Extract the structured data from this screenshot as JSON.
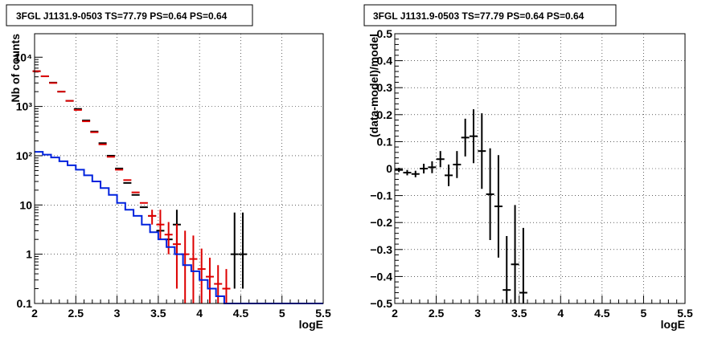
{
  "chart_data": [
    {
      "type": "line",
      "title": "3FGL J1131.9-0503 TS=77.79 PS=0.64 PS=0.64",
      "xlabel": "logE",
      "ylabel": "Nb of counts",
      "xscale": "linear",
      "yscale": "log",
      "xlim": [
        2,
        5.5
      ],
      "ylim": [
        0.1,
        30000
      ],
      "grid": true,
      "x_ticks": [
        "2",
        "2.5",
        "3",
        "3.5",
        "4",
        "4.5",
        "5",
        "5.5"
      ],
      "y_ticks": [
        "0.1",
        "1",
        "10",
        "10²",
        "10³",
        "10⁴"
      ],
      "series": [
        {
          "kind": "points",
          "color": "#000000",
          "x": [
            2.025,
            2.125,
            2.225,
            2.325,
            2.425,
            2.525,
            2.625,
            2.725,
            2.825,
            2.925,
            3.025,
            3.125,
            3.225,
            3.325,
            3.425,
            3.525,
            3.625,
            3.725,
            4.425,
            4.525
          ],
          "y": [
            5200,
            4100,
            3050,
            2000,
            1300,
            890,
            520,
            310,
            180,
            100,
            55,
            28,
            16,
            9,
            6,
            3,
            2,
            4,
            1,
            1
          ],
          "err_lo": [
            0,
            0,
            0,
            0,
            0,
            0,
            0,
            0,
            0,
            0,
            0,
            0,
            0,
            0,
            0,
            0,
            0,
            3,
            0.8,
            0.8
          ],
          "err_hi": [
            0,
            0,
            0,
            0,
            0,
            0,
            0,
            0,
            0,
            0,
            0,
            0,
            0,
            0,
            0,
            0,
            0,
            4,
            6,
            6
          ]
        },
        {
          "kind": "points",
          "color": "#dd0000",
          "x": [
            2.025,
            2.125,
            2.225,
            2.325,
            2.425,
            2.525,
            2.625,
            2.725,
            2.825,
            2.925,
            3.025,
            3.125,
            3.225,
            3.325,
            3.425,
            3.525,
            3.625,
            3.725,
            3.825,
            3.925,
            4.025,
            4.125,
            4.225,
            4.325
          ],
          "y": [
            5200,
            4100,
            3000,
            2000,
            1300,
            850,
            500,
            300,
            170,
            95,
            52,
            32,
            18,
            11,
            6,
            4,
            2.5,
            1.6,
            1,
            0.8,
            0.5,
            0.35,
            0.25,
            0.2
          ],
          "err_lo": [
            0,
            0,
            0,
            0,
            0,
            0,
            0,
            0,
            0,
            0,
            0,
            0,
            0,
            0,
            2,
            2,
            1.5,
            1.4,
            0.9,
            0.7,
            0.45,
            0.3,
            0.2,
            0.15
          ],
          "err_hi": [
            0,
            0,
            0,
            0,
            0,
            0,
            0,
            0,
            0,
            0,
            0,
            0,
            0,
            0,
            2,
            4,
            2,
            2.5,
            2,
            1.6,
            0.8,
            0.5,
            0.35,
            0.3
          ]
        },
        {
          "kind": "step",
          "color": "#0022dd",
          "edges": [
            2.0,
            2.1,
            2.2,
            2.3,
            2.4,
            2.5,
            2.6,
            2.7,
            2.8,
            2.9,
            3.0,
            3.1,
            3.2,
            3.3,
            3.4,
            3.5,
            3.6,
            3.7,
            3.8,
            3.9,
            4.0,
            4.1,
            4.2,
            4.3,
            4.4,
            4.5,
            5.5
          ],
          "values": [
            120,
            105,
            92,
            77,
            64,
            52,
            40,
            30,
            22,
            16,
            11,
            8,
            6,
            4,
            2.8,
            2,
            1.4,
            1,
            0.6,
            0.45,
            0.3,
            0.2,
            0.14,
            0.1,
            0.1,
            0.1
          ]
        }
      ]
    },
    {
      "type": "scatter",
      "title": "3FGL J1131.9-0503 TS=77.79 PS=0.64 PS=0.64",
      "xlabel": "logE",
      "ylabel": "(data-model)/model",
      "xscale": "linear",
      "yscale": "linear",
      "xlim": [
        2,
        5.5
      ],
      "ylim": [
        -0.5,
        0.5
      ],
      "grid": true,
      "x_ticks": [
        "2",
        "2.5",
        "3",
        "3.5",
        "4",
        "4.5",
        "5",
        "5.5"
      ],
      "y_ticks": [
        "−0.5",
        "−0.4",
        "−0.3",
        "−0.2",
        "−0.1",
        "0",
        "0.1",
        "0.2",
        "0.3",
        "0.4",
        "0.5"
      ],
      "series": [
        {
          "kind": "points",
          "color": "#000000",
          "x": [
            2.05,
            2.15,
            2.25,
            2.35,
            2.45,
            2.55,
            2.65,
            2.75,
            2.85,
            2.95,
            3.05,
            3.15,
            3.25,
            3.35,
            3.45,
            3.55
          ],
          "y": [
            -0.005,
            -0.015,
            -0.02,
            0.0,
            0.005,
            0.035,
            -0.025,
            0.015,
            0.115,
            0.12,
            0.065,
            -0.095,
            -0.14,
            -0.45,
            -0.355,
            -0.46
          ],
          "err": [
            0.008,
            0.01,
            0.012,
            0.018,
            0.022,
            0.03,
            0.04,
            0.05,
            0.07,
            0.1,
            0.14,
            0.17,
            0.19,
            0.2,
            0.22,
            0.24
          ]
        }
      ]
    }
  ]
}
